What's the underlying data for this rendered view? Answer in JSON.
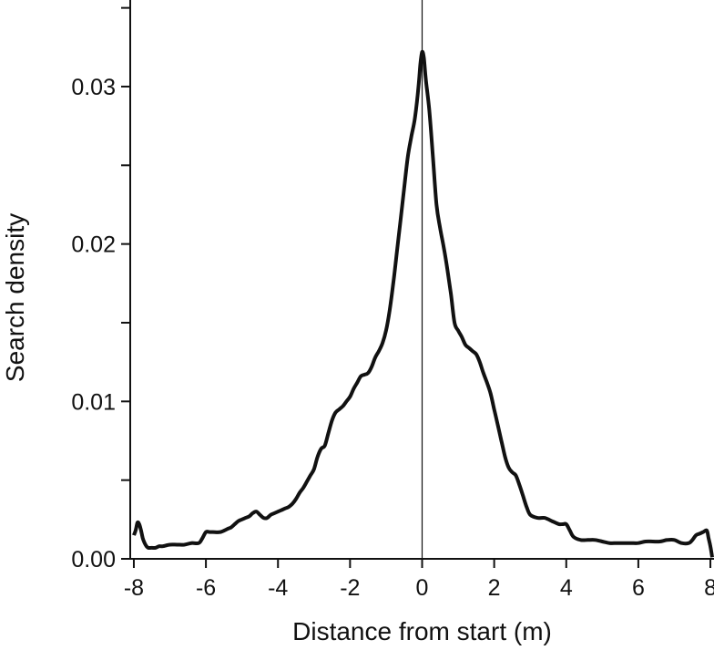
{
  "chart_data": {
    "type": "line",
    "title": "",
    "xlabel": "Distance from start (m)",
    "ylabel": "Search density",
    "xlim": [
      -8.1,
      8.1
    ],
    "ylim": [
      0,
      0.0355
    ],
    "xticks": [
      -8,
      -6,
      -4,
      -2,
      0,
      2,
      4,
      6,
      8
    ],
    "xtick_labels": [
      "-8",
      "-6",
      "-4",
      "-2",
      "0",
      "2",
      "4",
      "6",
      "8"
    ],
    "yticks_major": [
      0,
      0.01,
      0.02,
      0.03
    ],
    "ytick_labels": [
      "0.00",
      "0.01",
      "0.02",
      "0.03"
    ],
    "yticks_minor": [
      0.005,
      0.015,
      0.025,
      0.035
    ],
    "grid": false,
    "vertical_reference_line_x": 0,
    "colors": {
      "line": "#111111",
      "axis": "#111111",
      "background": "#ffffff"
    },
    "series": [
      {
        "x": [
          -8.0,
          -7.95,
          -7.9,
          -7.85,
          -7.8,
          -7.75,
          -7.7,
          -7.65,
          -7.6,
          -7.5,
          -7.4,
          -7.3,
          -7.2,
          -7.0,
          -6.8,
          -6.6,
          -6.4,
          -6.2,
          -6.1,
          -6.0,
          -5.9,
          -5.8,
          -5.6,
          -5.4,
          -5.3,
          -5.2,
          -5.1,
          -5.0,
          -4.9,
          -4.8,
          -4.7,
          -4.6,
          -4.5,
          -4.4,
          -4.3,
          -4.2,
          -4.1,
          -4.0,
          -3.9,
          -3.8,
          -3.7,
          -3.6,
          -3.5,
          -3.4,
          -3.3,
          -3.2,
          -3.1,
          -3.0,
          -2.9,
          -2.8,
          -2.7,
          -2.6,
          -2.5,
          -2.4,
          -2.3,
          -2.2,
          -2.1,
          -2.0,
          -1.9,
          -1.8,
          -1.7,
          -1.6,
          -1.5,
          -1.4,
          -1.3,
          -1.2,
          -1.1,
          -1.0,
          -0.9,
          -0.8,
          -0.7,
          -0.6,
          -0.5,
          -0.4,
          -0.3,
          -0.2,
          -0.1,
          -0.05,
          0.0,
          0.05,
          0.1,
          0.2,
          0.3,
          0.4,
          0.5,
          0.6,
          0.7,
          0.8,
          0.9,
          1.0,
          1.1,
          1.2,
          1.3,
          1.4,
          1.5,
          1.6,
          1.7,
          1.8,
          1.9,
          2.0,
          2.1,
          2.2,
          2.3,
          2.4,
          2.5,
          2.6,
          2.7,
          2.8,
          2.9,
          3.0,
          3.2,
          3.4,
          3.6,
          3.7,
          3.8,
          3.9,
          4.0,
          4.1,
          4.2,
          4.4,
          4.6,
          4.8,
          5.0,
          5.2,
          5.4,
          5.6,
          5.8,
          6.0,
          6.2,
          6.4,
          6.6,
          6.8,
          7.0,
          7.2,
          7.4,
          7.5,
          7.6,
          7.7,
          7.8,
          7.9,
          7.95,
          8.0,
          8.05
        ],
        "y": [
          0.0015,
          0.0018,
          0.0023,
          0.0022,
          0.0018,
          0.0013,
          0.001,
          0.0008,
          0.0007,
          0.0007,
          0.0007,
          0.0008,
          0.0008,
          0.0009,
          0.0009,
          0.0009,
          0.001,
          0.001,
          0.0013,
          0.0017,
          0.0017,
          0.0017,
          0.0017,
          0.0019,
          0.002,
          0.0022,
          0.0024,
          0.0025,
          0.0026,
          0.0027,
          0.0029,
          0.003,
          0.0028,
          0.0026,
          0.0026,
          0.0028,
          0.0029,
          0.003,
          0.0031,
          0.0032,
          0.0033,
          0.0035,
          0.0038,
          0.0042,
          0.0045,
          0.0049,
          0.0053,
          0.0057,
          0.0065,
          0.007,
          0.0072,
          0.008,
          0.0088,
          0.0093,
          0.0095,
          0.0097,
          0.01,
          0.0103,
          0.0108,
          0.0112,
          0.0116,
          0.0117,
          0.0118,
          0.0122,
          0.0128,
          0.0132,
          0.0137,
          0.0145,
          0.0158,
          0.0175,
          0.0195,
          0.0215,
          0.0235,
          0.0255,
          0.0268,
          0.028,
          0.03,
          0.0314,
          0.0322,
          0.0318,
          0.0305,
          0.0285,
          0.0255,
          0.0225,
          0.021,
          0.0198,
          0.0184,
          0.0168,
          0.015,
          0.0145,
          0.0141,
          0.0136,
          0.0134,
          0.0132,
          0.013,
          0.0125,
          0.0118,
          0.0112,
          0.0105,
          0.0095,
          0.0085,
          0.0075,
          0.0065,
          0.0058,
          0.0055,
          0.0053,
          0.0047,
          0.004,
          0.0033,
          0.0028,
          0.0026,
          0.0026,
          0.0024,
          0.0023,
          0.0022,
          0.0022,
          0.0022,
          0.0018,
          0.0014,
          0.0012,
          0.0012,
          0.0012,
          0.0011,
          0.001,
          0.001,
          0.001,
          0.001,
          0.001,
          0.0011,
          0.0011,
          0.0011,
          0.0012,
          0.0012,
          0.001,
          0.001,
          0.0012,
          0.0015,
          0.0016,
          0.0017,
          0.0018,
          0.0013,
          0.0008,
          0.0001
        ]
      }
    ]
  }
}
